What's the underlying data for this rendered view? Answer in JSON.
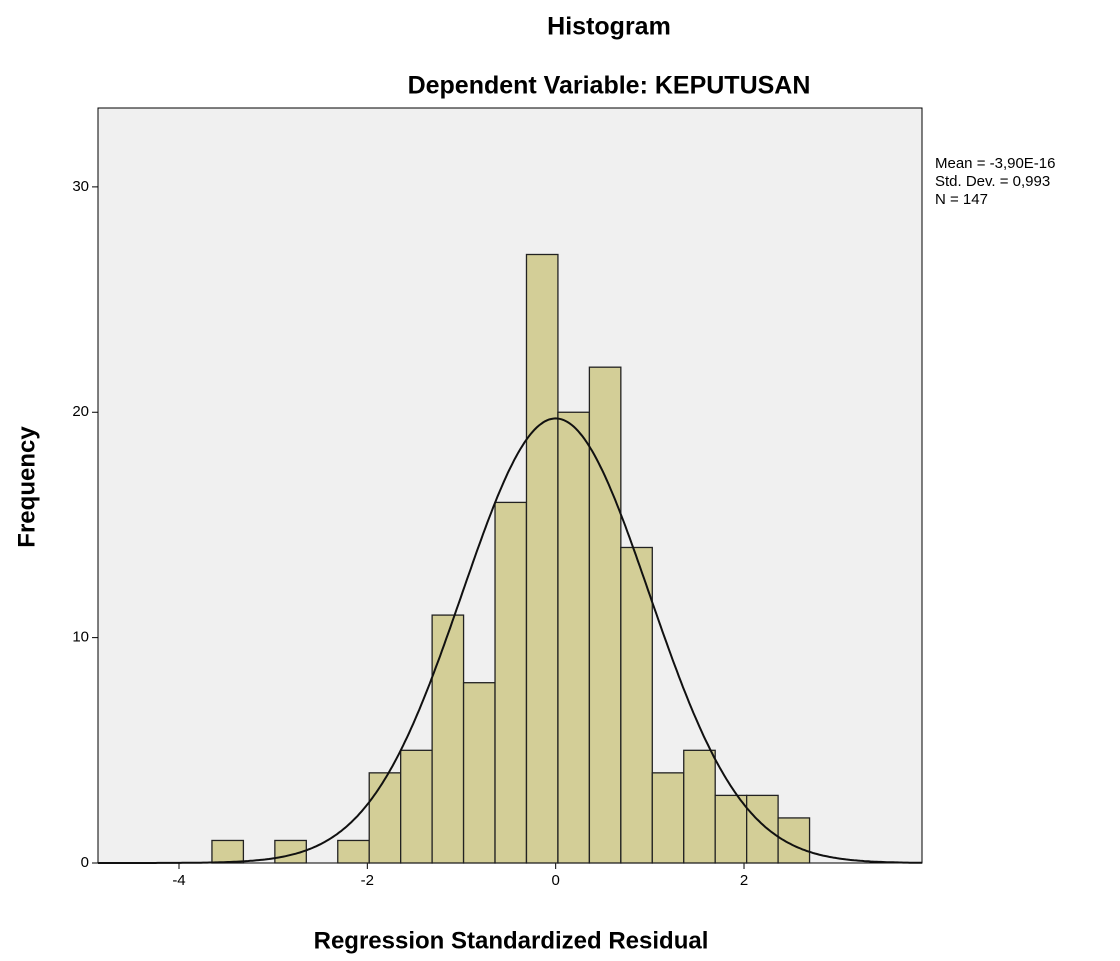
{
  "chart_data": {
    "type": "histogram",
    "title": "Histogram",
    "subtitle": "Dependent Variable: KEPUTUSAN",
    "x_label": "Regression Standardized Residual",
    "y_label": "Frequency",
    "annotations": [
      "Mean = -3,90E-16",
      "Std. Dev. = 0,993",
      "N = 147"
    ],
    "bins": [
      -3.65,
      -3.316,
      -2.982,
      -2.648,
      -2.314,
      -1.98,
      -1.646,
      -1.312,
      -0.978,
      -0.644,
      -0.31,
      0.024,
      0.358,
      0.692,
      1.026,
      1.36,
      1.694,
      2.028,
      2.362,
      2.696
    ],
    "values": [
      1,
      0,
      1,
      0,
      1,
      4,
      5,
      11,
      8,
      16,
      27,
      20,
      22,
      14,
      4,
      5,
      3,
      3,
      2
    ],
    "color": "#d3ce97",
    "normal_curve": {
      "mean": -3.9e-16,
      "std": 0.993,
      "n": 147
    },
    "xlim": [
      -4.86,
      3.89
    ],
    "xticks": [
      -4,
      -2,
      0,
      2
    ],
    "ylim": [
      0,
      33.5
    ],
    "yticks": [
      0,
      10,
      20,
      30
    ]
  }
}
